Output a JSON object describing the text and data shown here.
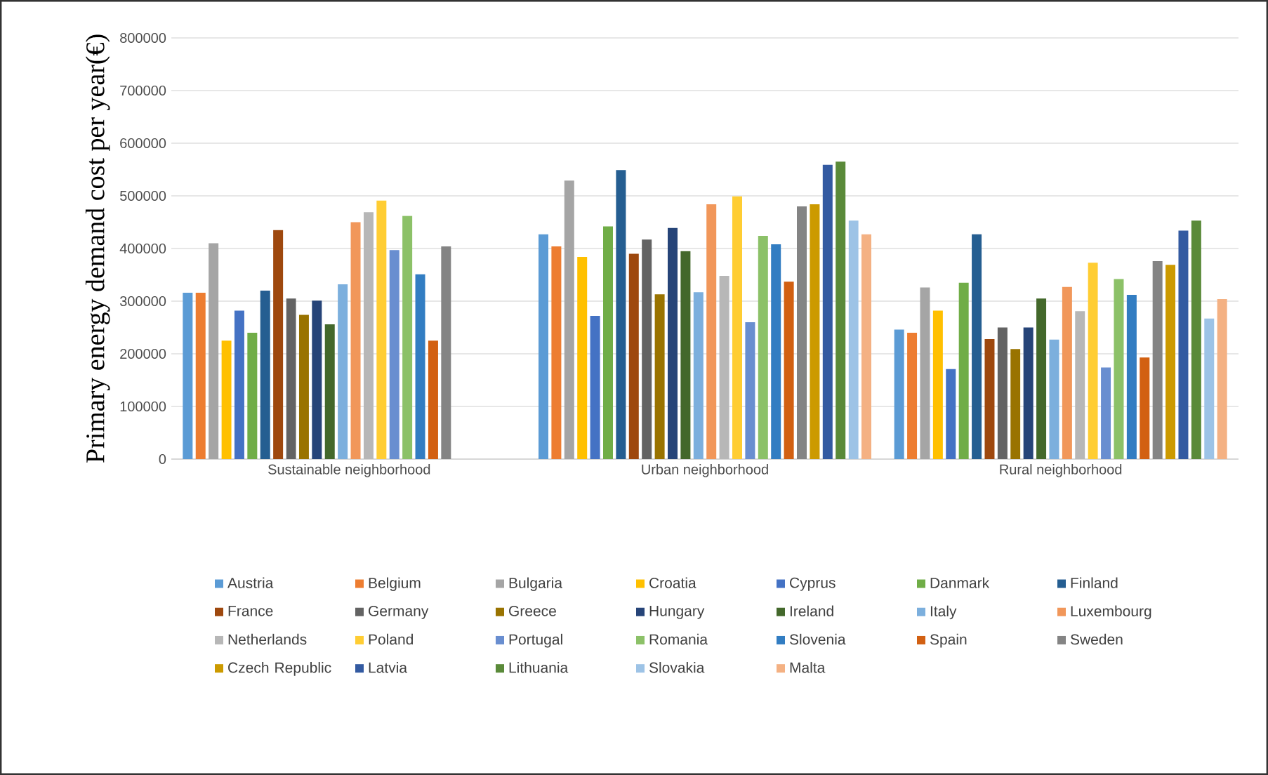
{
  "chart_data": {
    "type": "bar",
    "ylabel": "Primary energy demand cost per year(€)",
    "categories": [
      "Sustainable neighborhood",
      "Urban neighborhood",
      "Rural neighborhood"
    ],
    "ylim": [
      0,
      800000
    ],
    "yticks": [
      0,
      100000,
      200000,
      300000,
      400000,
      500000,
      600000,
      700000,
      800000
    ],
    "grid": "y",
    "legend": "bottom",
    "series": [
      {
        "name": "Austria",
        "color": "#5b9bd5",
        "values": [
          316000,
          427000,
          246000
        ]
      },
      {
        "name": "Belgium",
        "color": "#ed7d31",
        "values": [
          316000,
          404000,
          240000
        ]
      },
      {
        "name": "Bulgaria",
        "color": "#a5a5a5",
        "values": [
          410000,
          529000,
          326000
        ]
      },
      {
        "name": "Croatia",
        "color": "#ffc000",
        "values": [
          225000,
          384000,
          282000
        ]
      },
      {
        "name": "Cyprus",
        "color": "#4472c4",
        "values": [
          282000,
          272000,
          171000
        ]
      },
      {
        "name": "Danmark",
        "color": "#70ad47",
        "values": [
          240000,
          442000,
          335000
        ]
      },
      {
        "name": "Finland",
        "color": "#255e91",
        "values": [
          320000,
          549000,
          427000
        ]
      },
      {
        "name": "France",
        "color": "#9e480e",
        "values": [
          435000,
          390000,
          228000
        ]
      },
      {
        "name": "Germany",
        "color": "#636363",
        "values": [
          305000,
          417000,
          250000
        ]
      },
      {
        "name": "Greece",
        "color": "#997300",
        "values": [
          274000,
          313000,
          209000
        ]
      },
      {
        "name": "Hungary",
        "color": "#264478",
        "values": [
          301000,
          439000,
          250000
        ]
      },
      {
        "name": "Ireland",
        "color": "#43682b",
        "values": [
          256000,
          395000,
          305000
        ]
      },
      {
        "name": "Italy",
        "color": "#7cafdd",
        "values": [
          332000,
          317000,
          227000
        ]
      },
      {
        "name": "Luxembourg",
        "color": "#f1975a",
        "values": [
          450000,
          484000,
          327000
        ]
      },
      {
        "name": "Netherlands",
        "color": "#b7b7b7",
        "values": [
          469000,
          348000,
          281000
        ]
      },
      {
        "name": "Poland",
        "color": "#ffcd33",
        "values": [
          491000,
          499000,
          373000
        ]
      },
      {
        "name": "Portugal",
        "color": "#698ed0",
        "values": [
          397000,
          260000,
          174000
        ]
      },
      {
        "name": "Romania",
        "color": "#8cc168",
        "values": [
          462000,
          424000,
          342000
        ]
      },
      {
        "name": "Slovenia",
        "color": "#327dc2",
        "values": [
          351000,
          408000,
          312000
        ]
      },
      {
        "name": "Spain",
        "color": "#d26012",
        "values": [
          225000,
          337000,
          193000
        ]
      },
      {
        "name": "Sweden",
        "color": "#848484",
        "values": [
          404000,
          480000,
          376000
        ]
      },
      {
        "name": "Czech Republic",
        "color": "#cc9a00",
        "values": [
          null,
          484000,
          369000
        ]
      },
      {
        "name": "Latvia",
        "color": "#335aa1",
        "values": [
          null,
          559000,
          434000
        ]
      },
      {
        "name": "Lithuania",
        "color": "#5a8a39",
        "values": [
          null,
          565000,
          453000
        ]
      },
      {
        "name": "Slovakia",
        "color": "#9dc3e6",
        "values": [
          null,
          453000,
          267000
        ]
      },
      {
        "name": "Malta",
        "color": "#f4b183",
        "values": [
          null,
          427000,
          304000
        ]
      }
    ]
  }
}
